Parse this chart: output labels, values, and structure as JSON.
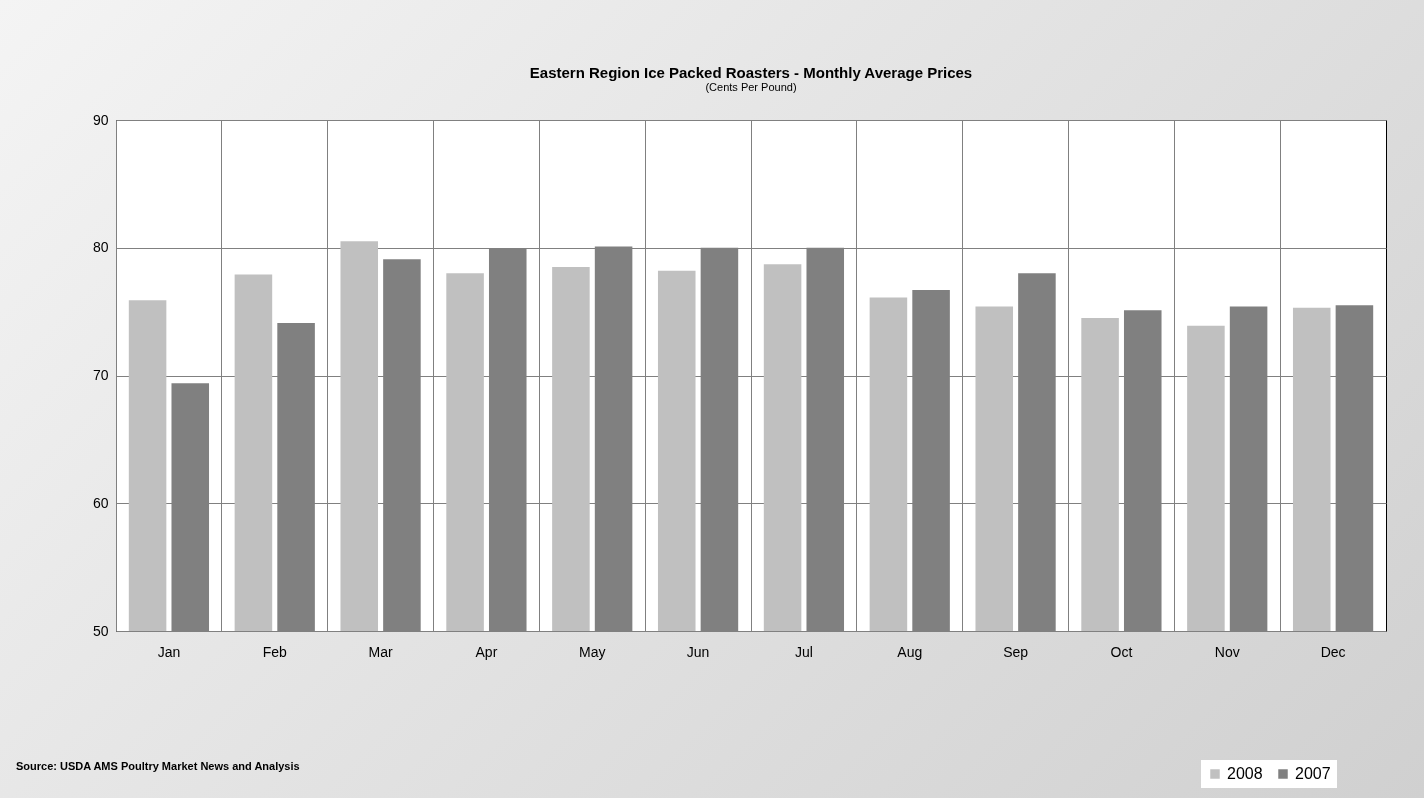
{
  "chart_data": {
    "type": "bar",
    "title": "Eastern Region Ice Packed Roasters - Monthly Average Prices",
    "subtitle": "(Cents Per Pound)",
    "categories": [
      "Jan",
      "Feb",
      "Mar",
      "Apr",
      "May",
      "Jun",
      "Jul",
      "Aug",
      "Sep",
      "Oct",
      "Nov",
      "Dec"
    ],
    "series": [
      {
        "name": "2008",
        "color": "#c0c0c0",
        "values": [
          75.9,
          77.9,
          80.5,
          78.0,
          78.5,
          78.2,
          78.7,
          76.1,
          75.4,
          74.5,
          73.9,
          75.3
        ]
      },
      {
        "name": "2007",
        "color": "#808080",
        "values": [
          69.4,
          74.1,
          79.1,
          79.9,
          80.1,
          80.0,
          80.0,
          76.7,
          78.0,
          75.1,
          75.4,
          75.5
        ]
      }
    ],
    "ylim": [
      50,
      90
    ],
    "yticks": [
      50,
      60,
      70,
      80,
      90
    ],
    "grid": true,
    "legend": "bottom right",
    "annotations": [
      "Source: USDA AMS Poultry Market News and Analysis"
    ]
  }
}
